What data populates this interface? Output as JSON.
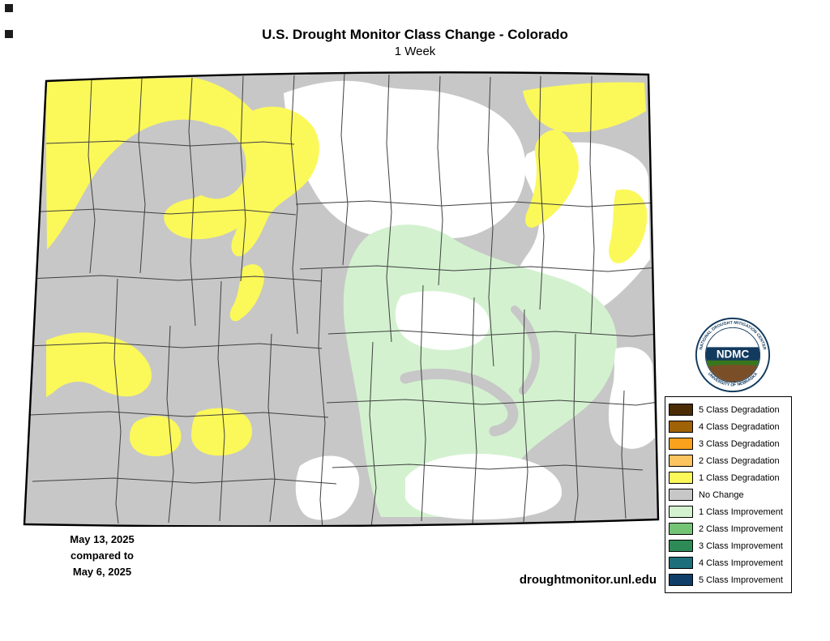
{
  "header": {
    "title": "U.S. Drought Monitor Class Change - Colorado",
    "subtitle": "1 Week"
  },
  "map": {
    "state": "Colorado",
    "colors": {
      "no_change": "#c7c7c7",
      "none": "#ffffff",
      "degradation_1": "#fbf85a",
      "improvement_1": "#d3f1cf",
      "county_line": "#3f3f3f",
      "state_border": "#000000"
    }
  },
  "logo": {
    "acronym": "NDMC",
    "ring_top": "NATIONAL DROUGHT MITIGATION CENTER",
    "ring_bottom": "UNIVERSITY OF NEBRASKA"
  },
  "legend": {
    "items": [
      {
        "label": "5 Class Degradation",
        "color": "#4a2c06"
      },
      {
        "label": "4 Class Degradation",
        "color": "#9f6206"
      },
      {
        "label": "3 Class Degradation",
        "color": "#faa21e"
      },
      {
        "label": "2 Class Degradation",
        "color": "#fcc45f"
      },
      {
        "label": "1 Class Degradation",
        "color": "#fbf85a"
      },
      {
        "label": "No Change",
        "color": "#c7c7c7"
      },
      {
        "label": "1 Class Improvement",
        "color": "#d3f1cf"
      },
      {
        "label": "2 Class Improvement",
        "color": "#74c476"
      },
      {
        "label": "3 Class Improvement",
        "color": "#2e8b57"
      },
      {
        "label": "4 Class Improvement",
        "color": "#1d6f7c"
      },
      {
        "label": "5 Class Improvement",
        "color": "#0f3e68"
      }
    ]
  },
  "footer": {
    "date_line1": "May 13, 2025",
    "date_line2": "compared to",
    "date_line3": "May 6, 2025",
    "url": "droughtmonitor.unl.edu"
  }
}
